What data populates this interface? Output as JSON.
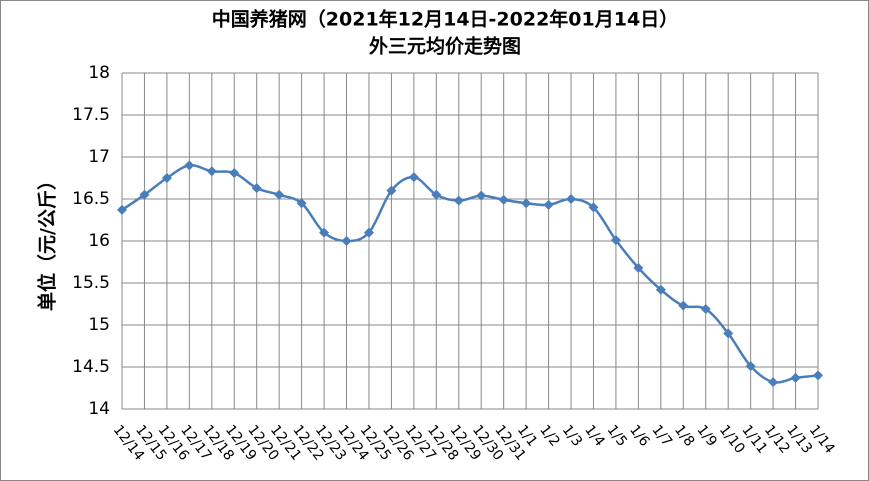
{
  "chart_data": {
    "type": "line",
    "title": "中国养猪网（2021年12月14日-2022年01月14日）",
    "subtitle": "外三元均价走势图",
    "y_label": "单位（元/公斤）",
    "categories": [
      "12/14",
      "12/15",
      "12/16",
      "12/17",
      "12/18",
      "12/19",
      "12/20",
      "12/21",
      "12/22",
      "12/23",
      "12/24",
      "12/25",
      "12/26",
      "12/27",
      "12/28",
      "12/29",
      "12/30",
      "12/31",
      "1/1",
      "1/2",
      "1/3",
      "1/4",
      "1/5",
      "1/6",
      "1/7",
      "1/8",
      "1/9",
      "1/10",
      "1/11",
      "1/12",
      "1/13",
      "1/14"
    ],
    "series": [
      {
        "name": "外三元",
        "color": "#4a7ebb",
        "values": [
          16.37,
          16.55,
          16.75,
          16.9,
          16.83,
          16.81,
          16.63,
          16.55,
          16.45,
          16.1,
          16.0,
          16.1,
          16.6,
          16.76,
          16.55,
          16.48,
          16.54,
          16.49,
          16.45,
          16.43,
          16.5,
          16.4,
          16.01,
          15.68,
          15.42,
          15.23,
          15.19,
          14.9,
          14.51,
          14.32,
          14.37,
          14.4
        ]
      }
    ],
    "ylim": [
      14,
      18
    ],
    "yticks": [
      14,
      14.5,
      15,
      15.5,
      16,
      16.5,
      17,
      17.5,
      18
    ],
    "grid": true
  }
}
